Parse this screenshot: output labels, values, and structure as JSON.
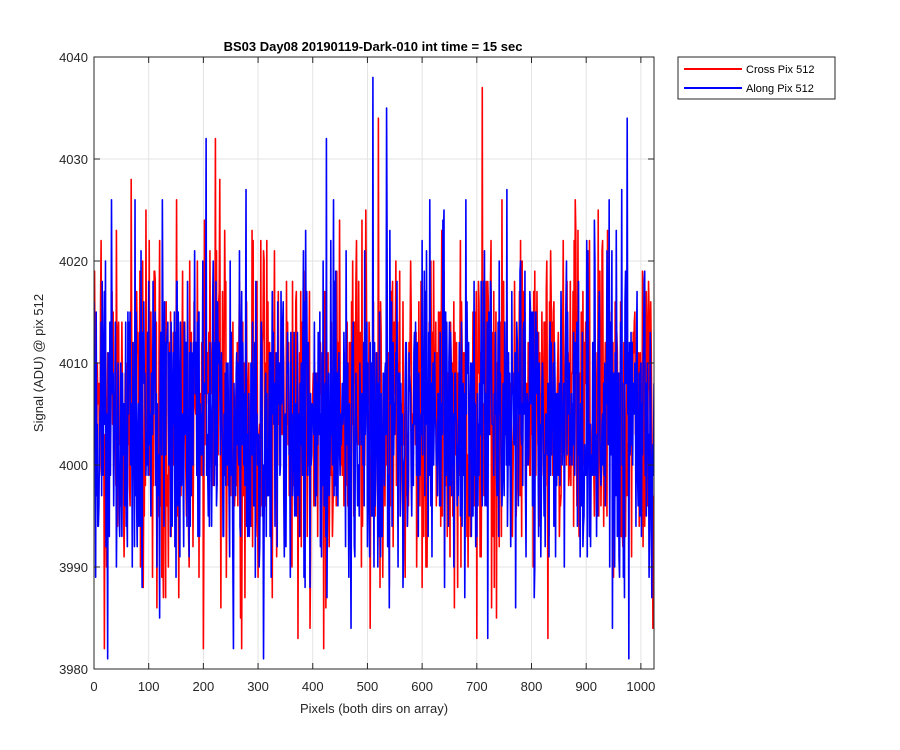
{
  "chart_data": {
    "type": "line",
    "title": "BS03 Day08 20190119-Dark-010 int time = 15 sec",
    "xlabel": "Pixels (both dirs on array)",
    "ylabel": "Signal (ADU) @ pix 512",
    "xlim": [
      0,
      1024
    ],
    "ylim": [
      3980,
      4040
    ],
    "xticks": [
      0,
      100,
      200,
      300,
      400,
      500,
      600,
      700,
      800,
      900,
      1000
    ],
    "yticks": [
      3980,
      3990,
      4000,
      4010,
      4020,
      4030,
      4040
    ],
    "grid": true,
    "legend_position": "outside-top-right",
    "series": [
      {
        "name": "Cross Pix 512",
        "color": "#ff0000",
        "baseline": 4005,
        "noise_amplitude": 8,
        "peaks": [
          [
            13,
            4022
          ],
          [
            19,
            3982
          ],
          [
            68,
            4028
          ],
          [
            95,
            4025
          ],
          [
            115,
            3986
          ],
          [
            155,
            3987
          ],
          [
            200,
            3982
          ],
          [
            222,
            4032
          ],
          [
            230,
            4028
          ],
          [
            305,
            4022
          ],
          [
            330,
            4021
          ],
          [
            373,
            3983
          ],
          [
            420,
            3982
          ],
          [
            480,
            4022
          ],
          [
            490,
            4024
          ],
          [
            520,
            4034
          ],
          [
            552,
            4020
          ],
          [
            700,
            3983
          ],
          [
            710,
            4037
          ],
          [
            780,
            4022
          ],
          [
            830,
            3983
          ],
          [
            880,
            4026
          ],
          [
            950,
            3989
          ],
          [
            1022,
            3984
          ]
        ]
      },
      {
        "name": "Along Pix 512",
        "color": "#0000ff",
        "baseline": 4005,
        "noise_amplitude": 8,
        "peaks": [
          [
            25,
            3981
          ],
          [
            75,
            4026
          ],
          [
            120,
            3985
          ],
          [
            205,
            4032
          ],
          [
            255,
            3982
          ],
          [
            310,
            3981
          ],
          [
            395,
            3988
          ],
          [
            425,
            4032
          ],
          [
            470,
            3984
          ],
          [
            510,
            4038
          ],
          [
            535,
            4035
          ],
          [
            540,
            3986
          ],
          [
            565,
            3988
          ],
          [
            600,
            4022
          ],
          [
            680,
            4026
          ],
          [
            720,
            3983
          ],
          [
            755,
            4027
          ],
          [
            860,
            3990
          ],
          [
            915,
            4024
          ],
          [
            975,
            4034
          ],
          [
            978,
            3981
          ],
          [
            1020,
            3987
          ]
        ]
      }
    ]
  }
}
